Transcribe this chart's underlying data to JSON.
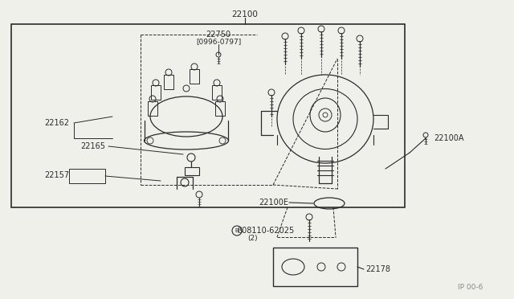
{
  "bg_color": "#f0f0eb",
  "line_color": "#2a2a2a",
  "text_color": "#2a2a2a",
  "box_color": "#f0f0eb",
  "part_number_top": "22100",
  "part_label_22750": "22750",
  "part_label_22750_date": "[0996-0797]",
  "part_label_22162": "22162",
  "part_label_22165": "22165",
  "part_label_22157": "22157",
  "part_label_22100A": "22100A",
  "part_label_22100E": "22100E",
  "part_label_bolt": "ß08110-62025",
  "part_label_bolt2": "(2)",
  "part_label_22178": "22178",
  "watermark": "IP 00-6",
  "fig_w": 6.4,
  "fig_h": 3.72,
  "dpi": 100
}
